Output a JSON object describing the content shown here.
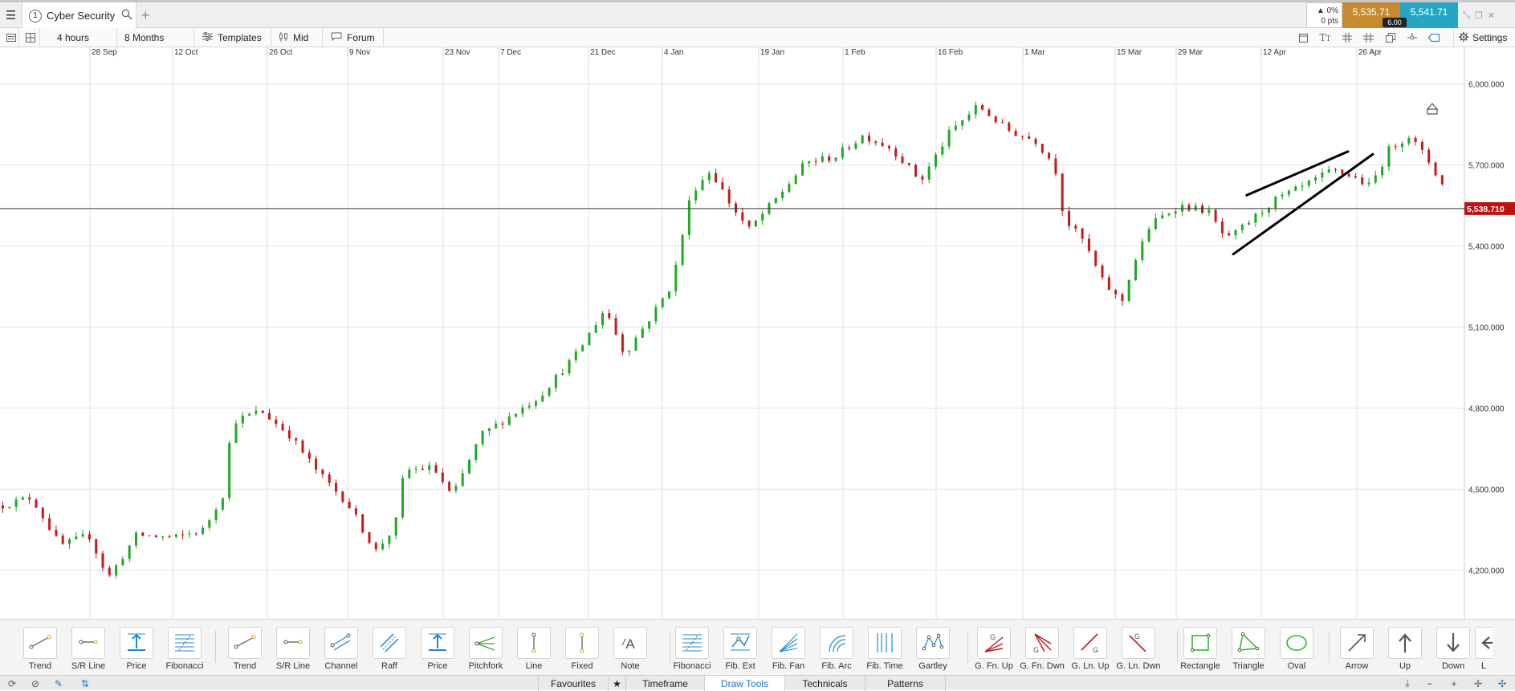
{
  "tab": {
    "number": "1",
    "title": "Cyber Security",
    "add": "+"
  },
  "price": {
    "change_pct": "▲ 0%",
    "change_pts": "0 pts",
    "sell": "5,535.71",
    "buy": "5,541.71",
    "spread": "6.00"
  },
  "toolbar": {
    "interval": "4 hours",
    "range": "8 Months",
    "templates": "Templates",
    "price_type": "Mid",
    "forum": "Forum",
    "settings": "Settings"
  },
  "chart_data": {
    "type": "candlestick",
    "instrument": "Cyber Security",
    "x_ticks": [
      "28 Sep",
      "12 Oct",
      "26 Oct",
      "9 Nov",
      "23 Nov",
      "7 Dec",
      "21 Dec",
      "4 Jan",
      "19 Jan",
      "1 Feb",
      "16 Feb",
      "1 Mar",
      "15 Mar",
      "29 Mar",
      "12 Apr",
      "26 Apr"
    ],
    "y_ticks": [
      "6,000.000",
      "5,700.000",
      "5,400.000",
      "5,100.000",
      "4,800.000",
      "4,500.000",
      "4,200.000"
    ],
    "ylim": [
      4020,
      6100
    ],
    "current_price": 5538.71,
    "current_price_label": "5,538.710",
    "close_path": [
      [
        0,
        4440
      ],
      [
        3,
        4470
      ],
      [
        6,
        4290
      ],
      [
        9,
        4330
      ],
      [
        11,
        4170
      ],
      [
        14,
        4330
      ],
      [
        18,
        4320
      ],
      [
        21,
        4350
      ],
      [
        23,
        4480
      ],
      [
        24,
        4750
      ],
      [
        27,
        4790
      ],
      [
        30,
        4700
      ],
      [
        33,
        4560
      ],
      [
        36,
        4450
      ],
      [
        39,
        4270
      ],
      [
        41,
        4360
      ],
      [
        42,
        4570
      ],
      [
        45,
        4580
      ],
      [
        47,
        4470
      ],
      [
        50,
        4700
      ],
      [
        56,
        4840
      ],
      [
        60,
        5000
      ],
      [
        63,
        5170
      ],
      [
        65,
        5000
      ],
      [
        68,
        5150
      ],
      [
        70,
        5260
      ],
      [
        72,
        5600
      ],
      [
        74,
        5680
      ],
      [
        76,
        5560
      ],
      [
        78,
        5460
      ],
      [
        81,
        5580
      ],
      [
        84,
        5710
      ],
      [
        87,
        5730
      ],
      [
        90,
        5810
      ],
      [
        93,
        5760
      ],
      [
        96,
        5640
      ],
      [
        99,
        5820
      ],
      [
        102,
        5920
      ],
      [
        105,
        5830
      ],
      [
        108,
        5790
      ],
      [
        110,
        5700
      ],
      [
        111,
        5500
      ],
      [
        113,
        5420
      ],
      [
        115,
        5270
      ],
      [
        117,
        5190
      ],
      [
        118,
        5310
      ],
      [
        120,
        5480
      ],
      [
        123,
        5550
      ],
      [
        126,
        5530
      ],
      [
        128,
        5420
      ],
      [
        130,
        5480
      ],
      [
        133,
        5570
      ],
      [
        136,
        5620
      ],
      [
        139,
        5680
      ],
      [
        141,
        5660
      ],
      [
        143,
        5620
      ],
      [
        145,
        5760
      ],
      [
        147,
        5810
      ],
      [
        149,
        5720
      ],
      [
        151,
        5600
      ],
      [
        152,
        5560
      ]
    ],
    "trend_lines": [
      {
        "x1": 130.2,
        "y1": 5588,
        "x2": 140.8,
        "y2": 5750
      },
      {
        "x1": 128.8,
        "y1": 5370,
        "x2": 143.4,
        "y2": 5740
      }
    ],
    "grid": true
  },
  "draw_tools": [
    {
      "id": "trend",
      "label": "Trend",
      "icon": "trend-line-icon"
    },
    {
      "id": "sr-line",
      "label": "S/R Line",
      "icon": "sr-line-icon"
    },
    {
      "id": "price",
      "label": "Price",
      "icon": "price-line-icon"
    },
    {
      "id": "fibonacci",
      "label": "Fibonacci",
      "icon": "fibonacci-icon"
    },
    {
      "id": "trend-2",
      "label": "Trend",
      "icon": "trend-line-icon"
    },
    {
      "id": "sr-line-2",
      "label": "S/R Line",
      "icon": "sr-line-icon"
    },
    {
      "id": "channel",
      "label": "Channel",
      "icon": "channel-icon"
    },
    {
      "id": "raff",
      "label": "Raff",
      "icon": "raff-icon"
    },
    {
      "id": "price-2",
      "label": "Price",
      "icon": "price-line-icon"
    },
    {
      "id": "pitchfork",
      "label": "Pitchfork",
      "icon": "pitchfork-icon"
    },
    {
      "id": "line",
      "label": "Line",
      "icon": "line-icon"
    },
    {
      "id": "fixed",
      "label": "Fixed",
      "icon": "fixed-line-icon"
    },
    {
      "id": "note",
      "label": "Note",
      "icon": "note-icon"
    },
    {
      "id": "fibonacci-2",
      "label": "Fibonacci",
      "icon": "fibonacci-icon"
    },
    {
      "id": "fib-ext",
      "label": "Fib. Ext",
      "icon": "fib-ext-icon"
    },
    {
      "id": "fib-fan",
      "label": "Fib. Fan",
      "icon": "fib-fan-icon"
    },
    {
      "id": "fib-arc",
      "label": "Fib. Arc",
      "icon": "fib-arc-icon"
    },
    {
      "id": "fib-time",
      "label": "Fib. Time",
      "icon": "fib-time-icon"
    },
    {
      "id": "gartley",
      "label": "Gartley",
      "icon": "gartley-icon"
    },
    {
      "id": "g-fn-up",
      "label": "G. Fn. Up",
      "icon": "gann-fan-up-icon"
    },
    {
      "id": "g-fn-dwn",
      "label": "G. Fn. Dwn",
      "icon": "gann-fan-down-icon"
    },
    {
      "id": "g-ln-up",
      "label": "G. Ln. Up",
      "icon": "gann-line-up-icon"
    },
    {
      "id": "g-ln-dwn",
      "label": "G. Ln. Dwn",
      "icon": "gann-line-down-icon"
    },
    {
      "id": "rectangle",
      "label": "Rectangle",
      "icon": "rectangle-icon"
    },
    {
      "id": "triangle",
      "label": "Triangle",
      "icon": "triangle-icon"
    },
    {
      "id": "oval",
      "label": "Oval",
      "icon": "oval-icon"
    },
    {
      "id": "arrow",
      "label": "Arrow",
      "icon": "arrow-icon"
    },
    {
      "id": "up",
      "label": "Up",
      "icon": "up-arrow-icon"
    },
    {
      "id": "down",
      "label": "Down",
      "icon": "down-arrow-icon"
    },
    {
      "id": "left",
      "label": "L",
      "icon": "left-arrow-icon"
    }
  ],
  "bottom_tabs": {
    "favourites": "Favourites",
    "timeframe": "Timeframe",
    "draw_tools": "Draw Tools",
    "technicals": "Technicals",
    "patterns": "Patterns"
  },
  "colors": {
    "up_candle": "#22a722",
    "down_candle": "#c41a1a",
    "price_tag": "#c01010",
    "accent": "#1e88d8",
    "green_tool": "#2cb82c"
  }
}
